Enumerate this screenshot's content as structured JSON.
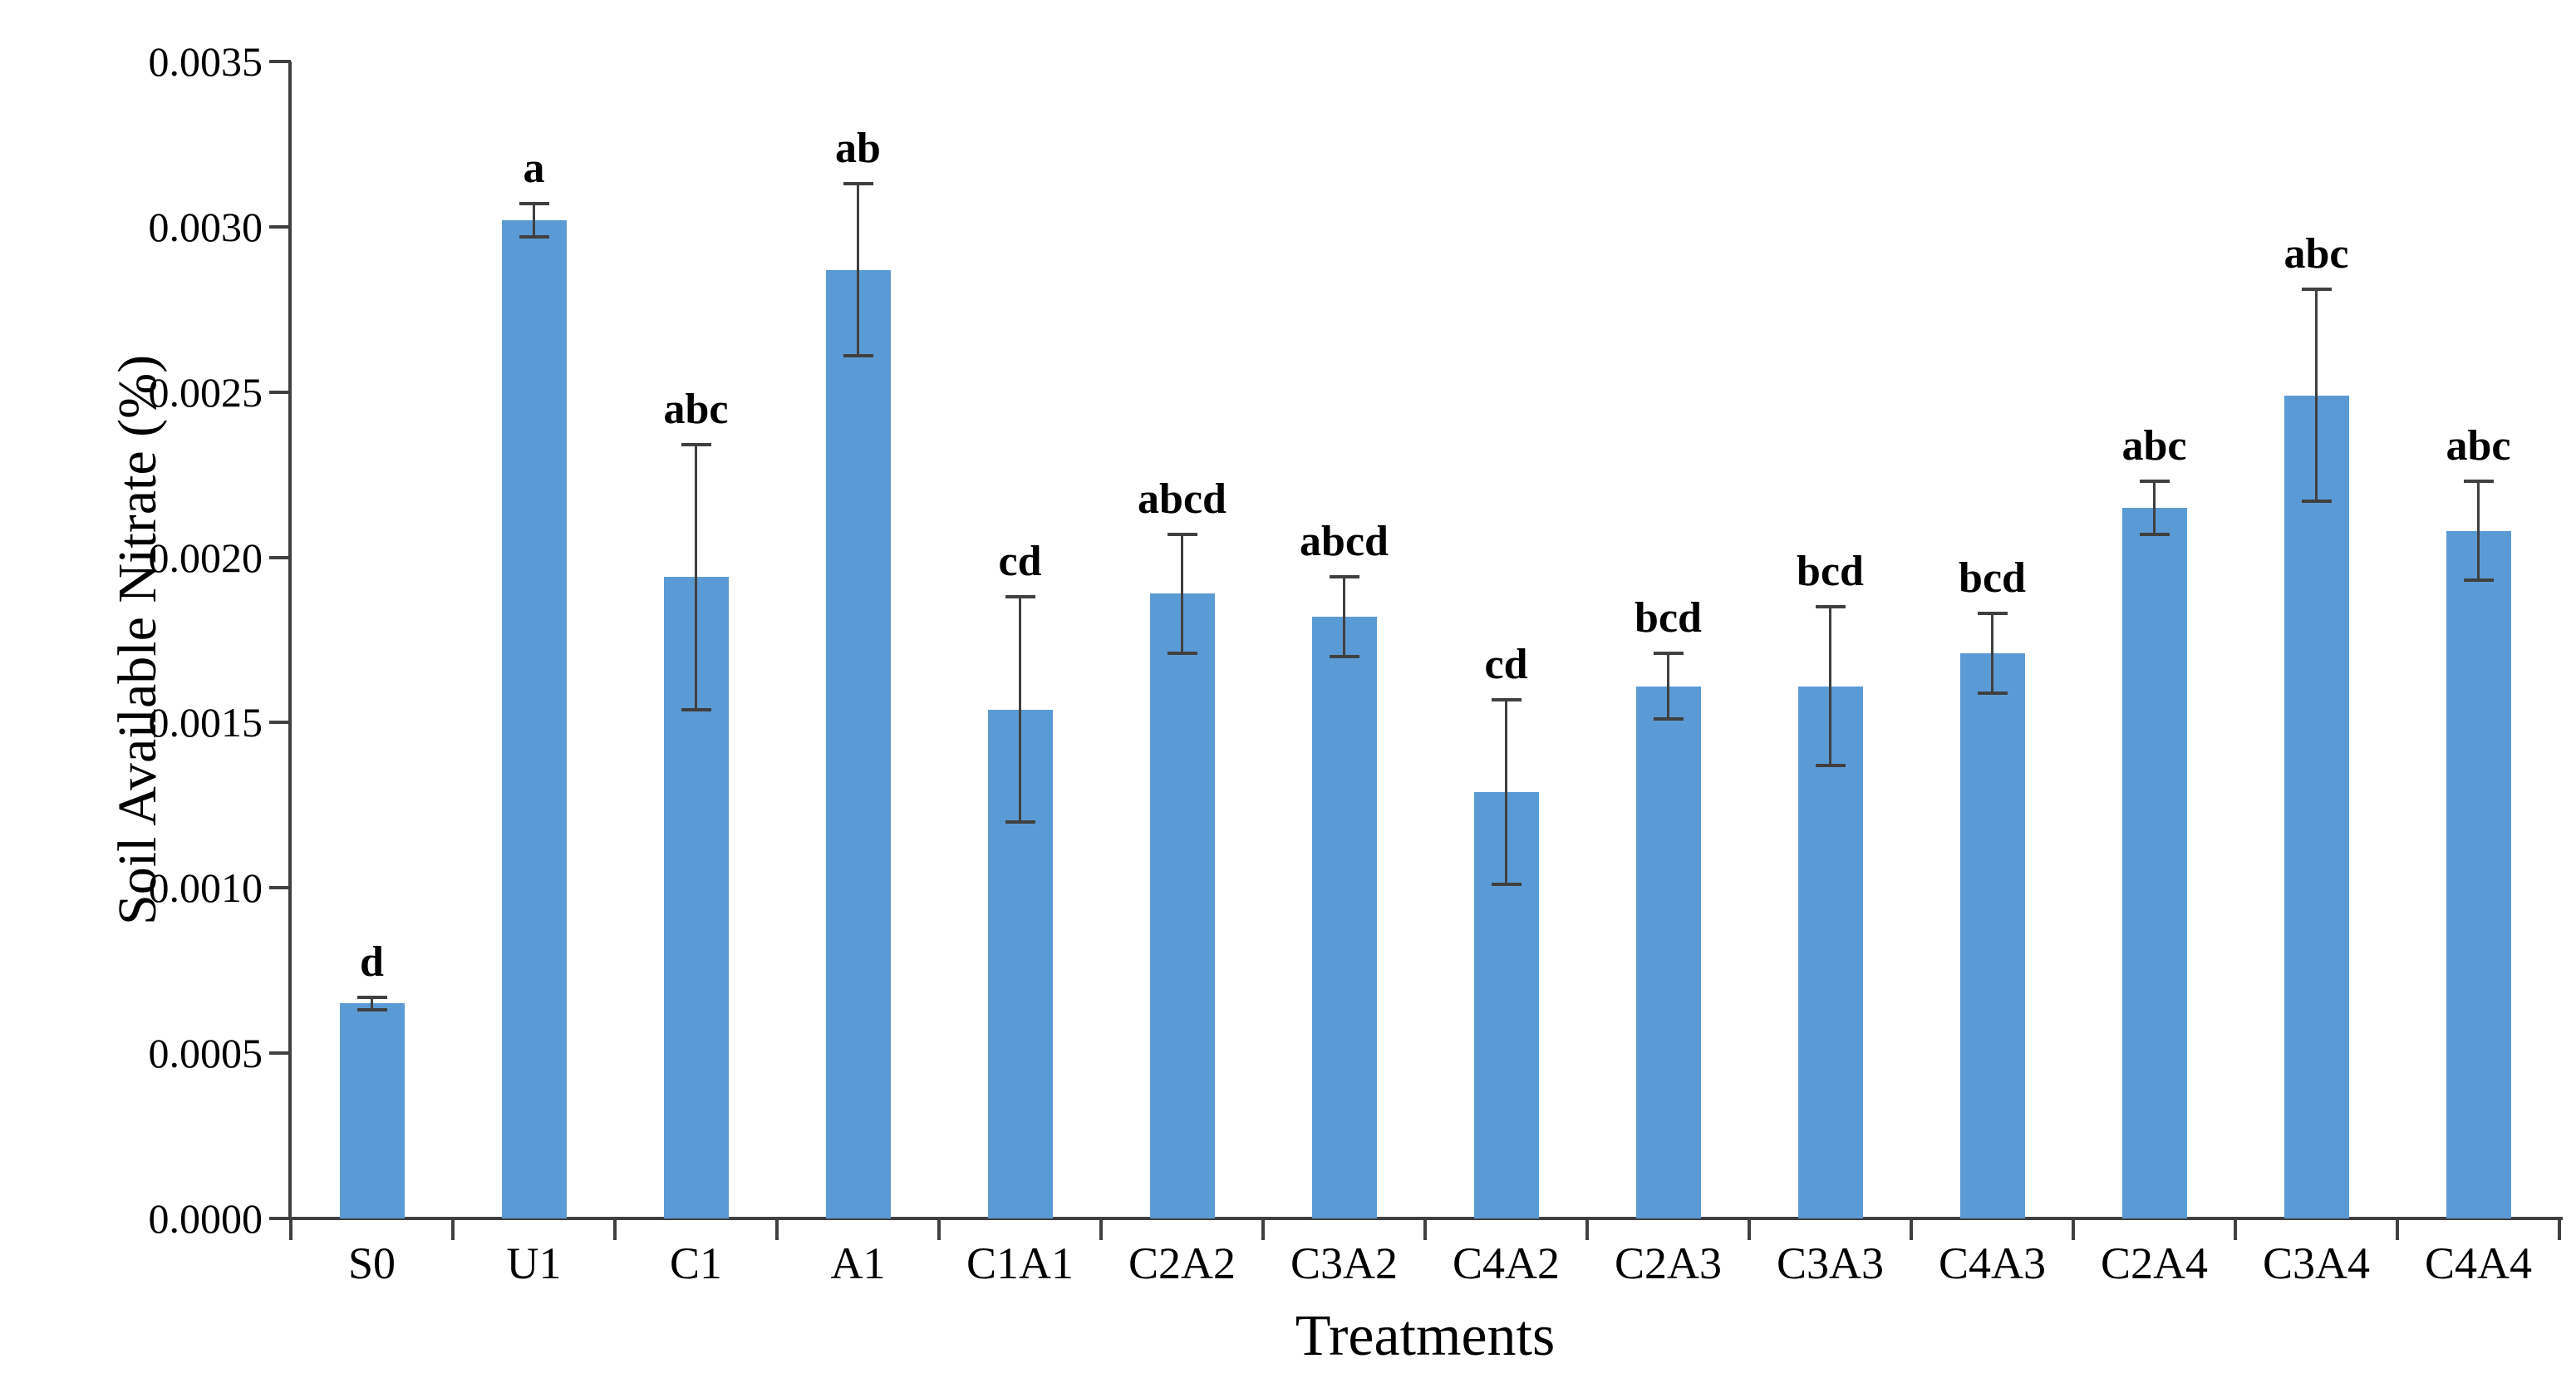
{
  "chart_data": {
    "type": "bar",
    "title": "",
    "xlabel": "Treatments",
    "ylabel": "Soil Available Nitrate (%)",
    "categories": [
      "S0",
      "U1",
      "C1",
      "A1",
      "C1A1",
      "C2A2",
      "C3A2",
      "C4A2",
      "C2A3",
      "C3A3",
      "C4A3",
      "C2A4",
      "C3A4",
      "C4A4"
    ],
    "values": [
      0.00065,
      0.00302,
      0.00194,
      0.00287,
      0.00154,
      0.00189,
      0.00182,
      0.00129,
      0.00161,
      0.00161,
      0.00171,
      0.00215,
      0.00249,
      0.00208
    ],
    "errors": [
      2e-05,
      5e-05,
      0.0004,
      0.00026,
      0.00034,
      0.00018,
      0.00012,
      0.00028,
      0.0001,
      0.00024,
      0.00012,
      8e-05,
      0.00032,
      0.00015
    ],
    "sig_letters": [
      "d",
      "a",
      "abc",
      "ab",
      "cd",
      "abcd",
      "abcd",
      "cd",
      "bcd",
      "bcd",
      "bcd",
      "abc",
      "abc",
      "abc"
    ],
    "ylim": [
      0,
      0.0035
    ],
    "y_tick_step": 0.0005,
    "y_tick_labels": [
      "0.0000",
      "0.0005",
      "0.0010",
      "0.0015",
      "0.0020",
      "0.0025",
      "0.0030",
      "0.0035"
    ],
    "bar_color": "#5B9BD5",
    "axis_color": "#404040",
    "error_bar_color": "#404040",
    "text_color": "#000000",
    "grid": "off",
    "legend": "none"
  }
}
